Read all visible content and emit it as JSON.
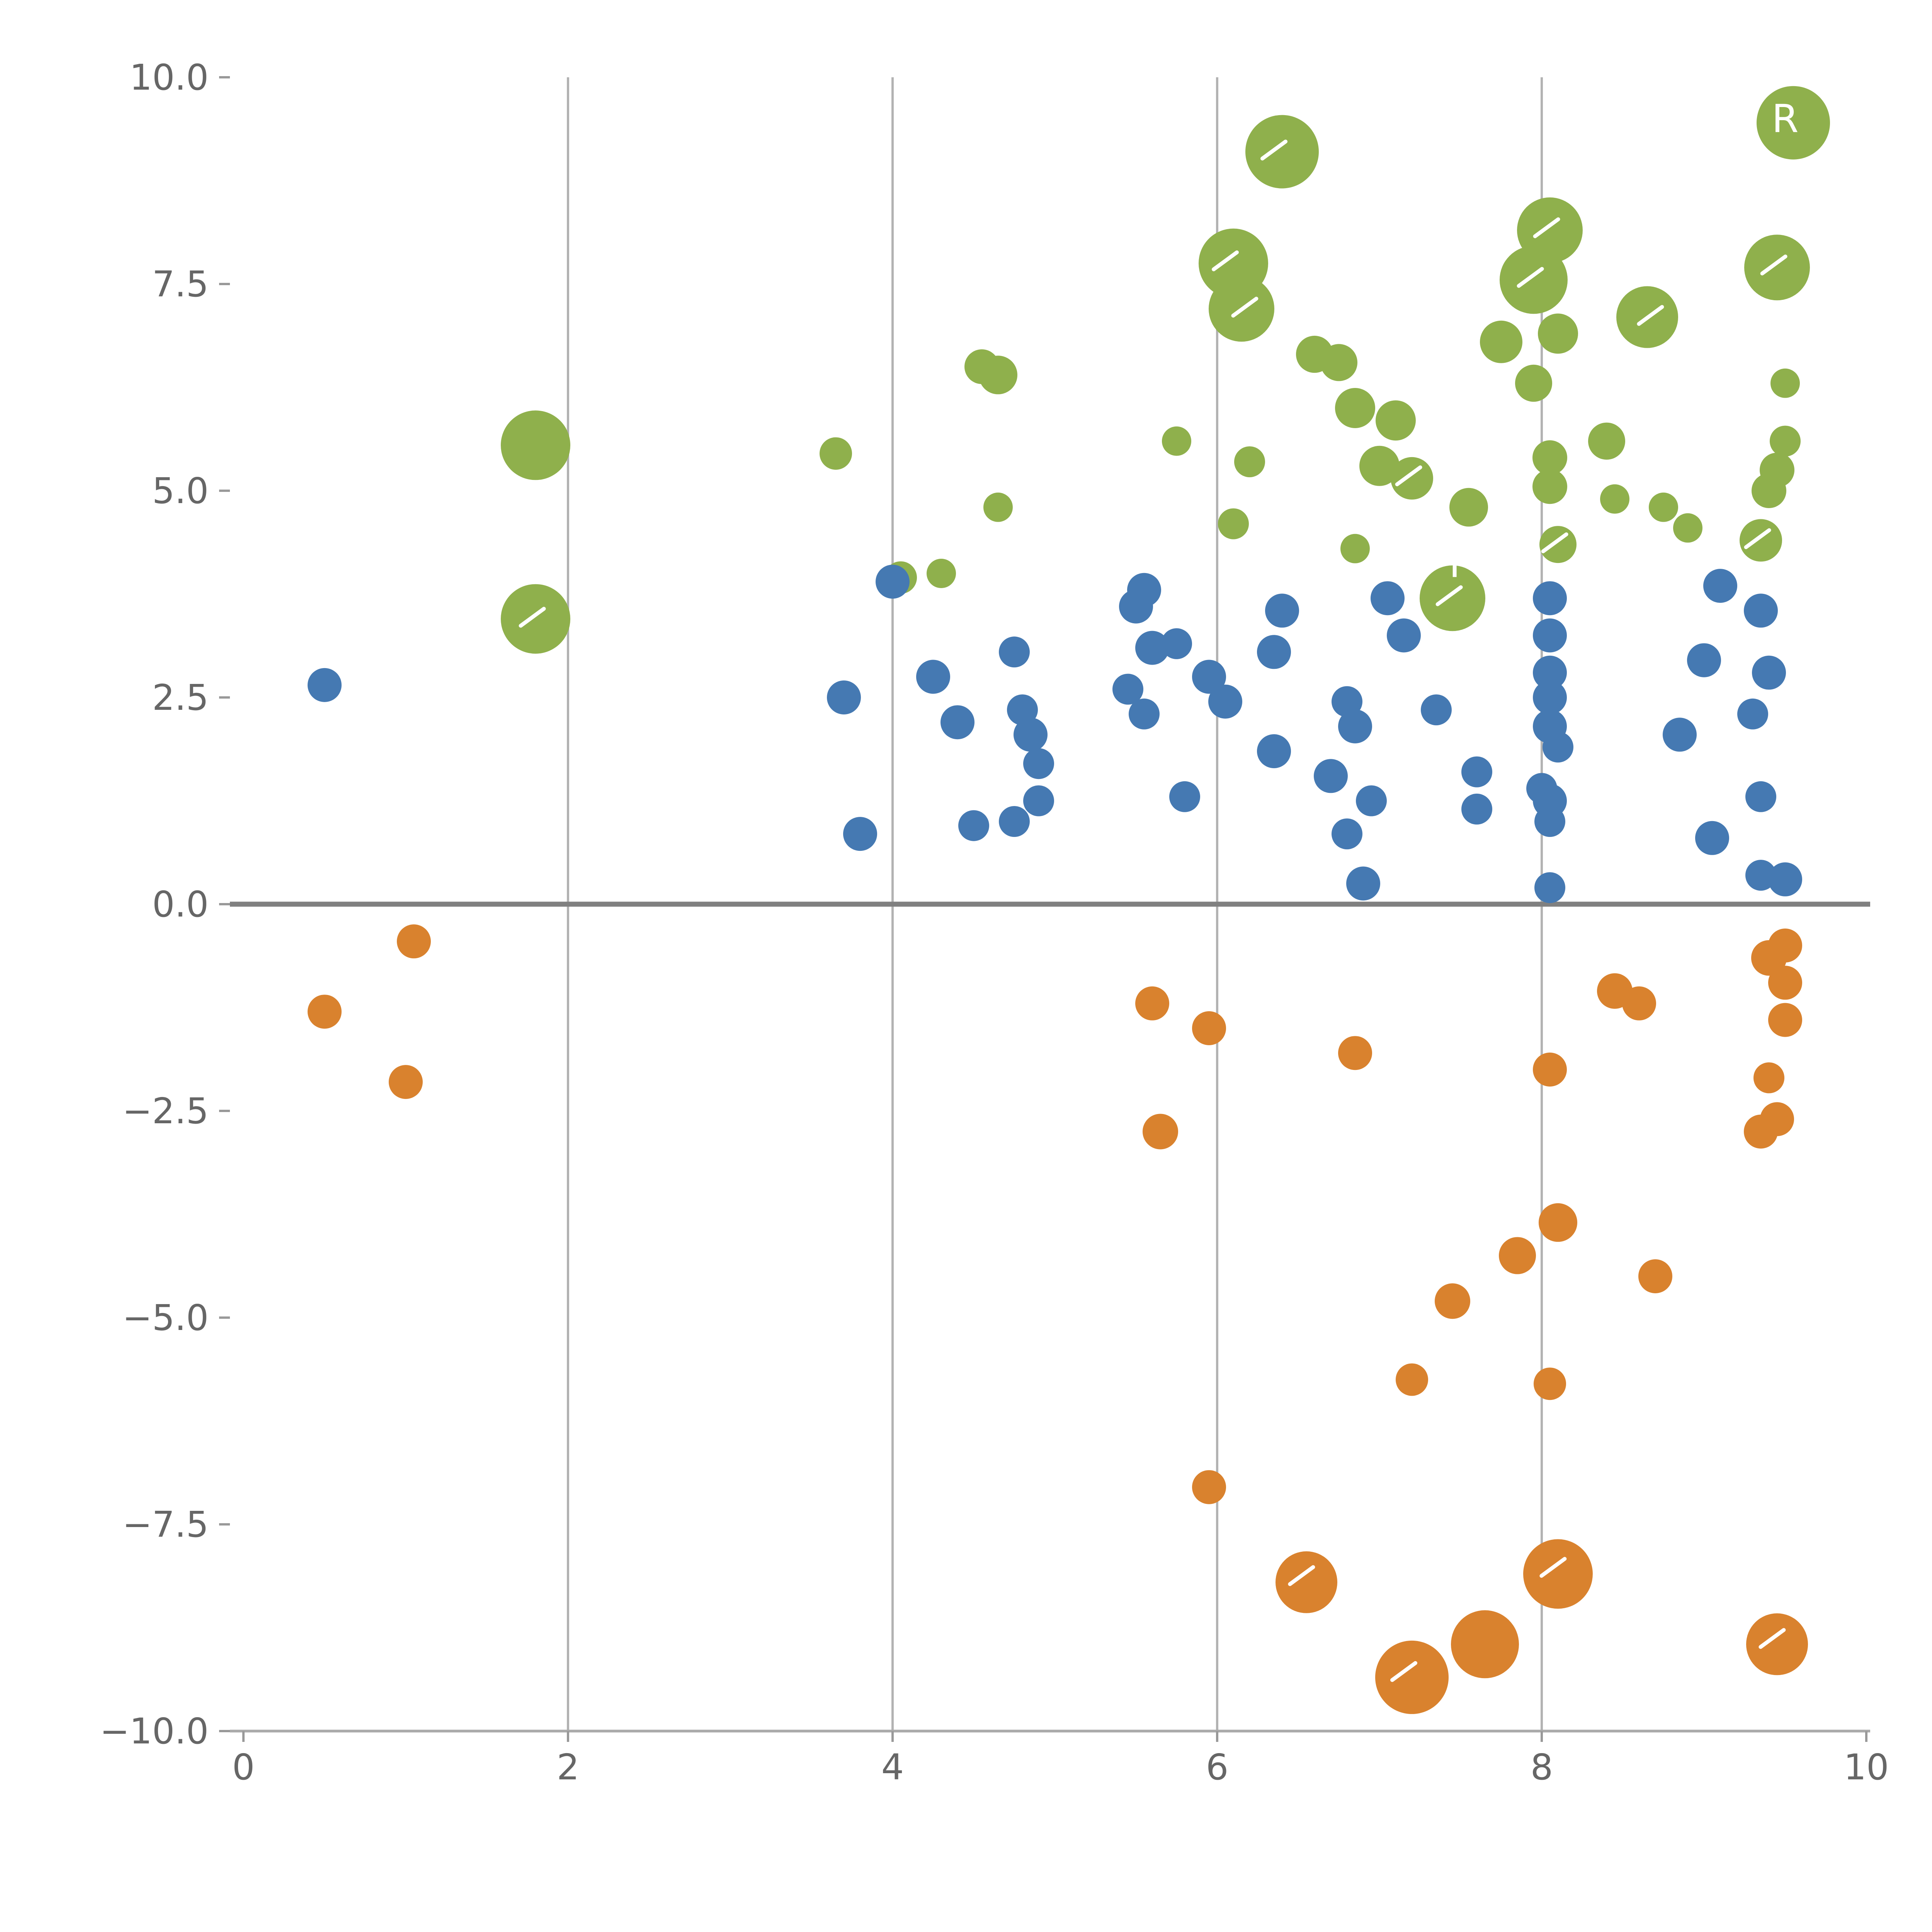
{
  "chart_data": {
    "type": "scatter",
    "title": "",
    "xlabel": "",
    "ylabel": "",
    "xlim": [
      0,
      10
    ],
    "ylim": [
      -10,
      10
    ],
    "xticks": [
      0,
      2,
      4,
      6,
      8,
      10
    ],
    "xtick_labels": [
      "0",
      "2",
      "4",
      "6",
      "8",
      "10"
    ],
    "yticks": [
      -10.0,
      -7.5,
      -5.0,
      -2.5,
      0.0,
      2.5,
      5.0,
      7.5,
      10.0
    ],
    "ytick_labels": [
      "−10.0",
      "−7.5",
      "−5.0",
      "−2.5",
      "0.0",
      "2.5",
      "5.0",
      "7.5",
      "10.0"
    ],
    "grid": {
      "vertical_lines_at": [
        2,
        4,
        6,
        8
      ],
      "color": "#b3b3b3"
    },
    "axis_line_color": "#aaaaaa",
    "tick_mark_color": "#999999",
    "tick_label_color": "#666666",
    "zero_line": {
      "y": 0.0,
      "color": "#808080"
    },
    "legend": "none",
    "point_schema": [
      "x",
      "y",
      "radius_px"
    ],
    "series": [
      {
        "name": "green",
        "color": "#8fb04c",
        "points": [
          [
            6.4,
            9.1,
            95
          ],
          [
            9.55,
            9.45,
            95
          ],
          [
            6.1,
            7.75,
            90
          ],
          [
            6.15,
            7.2,
            85
          ],
          [
            8.05,
            8.15,
            85
          ],
          [
            7.95,
            7.55,
            88
          ],
          [
            9.45,
            7.7,
            85
          ],
          [
            8.65,
            7.1,
            80
          ],
          [
            7.75,
            6.8,
            55
          ],
          [
            8.1,
            6.9,
            52
          ],
          [
            6.6,
            6.65,
            48
          ],
          [
            6.75,
            6.55,
            48
          ],
          [
            4.55,
            6.5,
            45
          ],
          [
            4.65,
            6.4,
            50
          ],
          [
            6.85,
            6.0,
            52
          ],
          [
            7.1,
            5.85,
            52
          ],
          [
            7.95,
            6.3,
            48
          ],
          [
            9.5,
            6.3,
            38
          ],
          [
            1.8,
            5.55,
            90
          ],
          [
            3.65,
            5.45,
            42
          ],
          [
            5.75,
            5.6,
            38
          ],
          [
            8.4,
            5.6,
            48
          ],
          [
            6.2,
            5.35,
            40
          ],
          [
            7.0,
            5.3,
            52
          ],
          [
            7.2,
            5.15,
            55
          ],
          [
            8.05,
            5.4,
            45
          ],
          [
            8.05,
            5.05,
            45
          ],
          [
            7.55,
            4.8,
            50
          ],
          [
            9.5,
            5.6,
            40
          ],
          [
            9.45,
            5.25,
            45
          ],
          [
            9.4,
            5.0,
            45
          ],
          [
            4.65,
            4.8,
            38
          ],
          [
            6.1,
            4.6,
            40
          ],
          [
            6.85,
            4.3,
            38
          ],
          [
            8.45,
            4.9,
            38
          ],
          [
            8.75,
            4.8,
            38
          ],
          [
            8.9,
            4.55,
            38
          ],
          [
            7.45,
            3.7,
            85
          ],
          [
            1.8,
            3.45,
            90
          ],
          [
            4.05,
            3.95,
            42
          ],
          [
            4.3,
            4.0,
            38
          ],
          [
            9.35,
            4.4,
            55
          ],
          [
            8.1,
            4.35,
            48
          ]
        ]
      },
      {
        "name": "blue",
        "color": "#4579b2",
        "points": [
          [
            0.5,
            2.65,
            44
          ],
          [
            4.0,
            3.9,
            44
          ],
          [
            5.55,
            3.8,
            44
          ],
          [
            5.5,
            3.6,
            44
          ],
          [
            6.4,
            3.55,
            44
          ],
          [
            7.05,
            3.7,
            44
          ],
          [
            8.05,
            3.7,
            44
          ],
          [
            9.1,
            3.85,
            44
          ],
          [
            9.35,
            3.55,
            44
          ],
          [
            5.6,
            3.1,
            44
          ],
          [
            5.75,
            3.15,
            40
          ],
          [
            6.35,
            3.05,
            44
          ],
          [
            7.15,
            3.25,
            44
          ],
          [
            4.75,
            3.05,
            40
          ],
          [
            8.05,
            3.25,
            44
          ],
          [
            8.05,
            2.8,
            44
          ],
          [
            8.05,
            2.5,
            44
          ],
          [
            8.05,
            2.15,
            44
          ],
          [
            8.1,
            1.9,
            40
          ],
          [
            9.0,
            2.95,
            44
          ],
          [
            9.4,
            2.8,
            44
          ],
          [
            4.25,
            2.75,
            44
          ],
          [
            3.7,
            2.5,
            44
          ],
          [
            5.45,
            2.6,
            40
          ],
          [
            5.95,
            2.75,
            44
          ],
          [
            6.05,
            2.45,
            44
          ],
          [
            6.8,
            2.45,
            40
          ],
          [
            4.4,
            2.2,
            44
          ],
          [
            4.8,
            2.35,
            40
          ],
          [
            4.85,
            2.05,
            44
          ],
          [
            5.55,
            2.3,
            40
          ],
          [
            6.85,
            2.15,
            44
          ],
          [
            7.35,
            2.35,
            40
          ],
          [
            8.85,
            2.05,
            44
          ],
          [
            9.3,
            2.3,
            40
          ],
          [
            6.35,
            1.85,
            44
          ],
          [
            4.9,
            1.7,
            40
          ],
          [
            6.7,
            1.55,
            44
          ],
          [
            7.6,
            1.6,
            40
          ],
          [
            8.0,
            1.4,
            40
          ],
          [
            5.8,
            1.3,
            40
          ],
          [
            4.9,
            1.25,
            40
          ],
          [
            4.75,
            1.0,
            40
          ],
          [
            4.5,
            0.95,
            40
          ],
          [
            6.95,
            1.25,
            40
          ],
          [
            7.6,
            1.15,
            40
          ],
          [
            8.05,
            1.25,
            44
          ],
          [
            8.05,
            1.0,
            40
          ],
          [
            9.35,
            1.3,
            40
          ],
          [
            3.8,
            0.85,
            44
          ],
          [
            6.8,
            0.85,
            40
          ],
          [
            9.05,
            0.8,
            44
          ],
          [
            6.9,
            0.25,
            44
          ],
          [
            8.05,
            0.2,
            40
          ],
          [
            9.35,
            0.35,
            40
          ],
          [
            9.5,
            0.3,
            44
          ]
        ]
      },
      {
        "name": "orange",
        "color": "#d9822e",
        "points": [
          [
            1.05,
            -0.45,
            44
          ],
          [
            0.5,
            -1.3,
            44
          ],
          [
            1.0,
            -2.15,
            44
          ],
          [
            5.6,
            -1.2,
            44
          ],
          [
            5.95,
            -1.5,
            44
          ],
          [
            6.85,
            -1.8,
            44
          ],
          [
            5.65,
            -2.75,
            46
          ],
          [
            8.45,
            -1.05,
            46
          ],
          [
            8.6,
            -1.2,
            44
          ],
          [
            9.4,
            -0.65,
            46
          ],
          [
            9.5,
            -0.5,
            44
          ],
          [
            9.5,
            -0.95,
            44
          ],
          [
            9.5,
            -1.4,
            44
          ],
          [
            8.05,
            -2.0,
            44
          ],
          [
            9.4,
            -2.1,
            40
          ],
          [
            9.45,
            -2.6,
            44
          ],
          [
            9.35,
            -2.75,
            44
          ],
          [
            8.1,
            -3.85,
            50
          ],
          [
            7.85,
            -4.25,
            48
          ],
          [
            8.7,
            -4.5,
            44
          ],
          [
            7.45,
            -4.8,
            46
          ],
          [
            7.2,
            -5.75,
            42
          ],
          [
            8.05,
            -5.8,
            42
          ],
          [
            5.95,
            -7.05,
            44
          ],
          [
            6.55,
            -8.2,
            80
          ],
          [
            8.1,
            -8.1,
            90
          ],
          [
            7.2,
            -9.35,
            95
          ],
          [
            7.65,
            -8.95,
            88
          ],
          [
            9.45,
            -8.95,
            80
          ]
        ]
      }
    ],
    "point_annotations": [
      {
        "text": "R",
        "x": 9.5,
        "y": 9.5
      },
      {
        "text": "P",
        "x": 7.5,
        "y": 4.12
      }
    ],
    "white_tick_marks": [
      [
        6.35,
        9.12
      ],
      [
        6.05,
        7.78
      ],
      [
        6.17,
        7.22
      ],
      [
        7.93,
        7.58
      ],
      [
        8.03,
        8.18
      ],
      [
        9.43,
        7.73
      ],
      [
        8.67,
        7.12
      ],
      [
        7.18,
        5.18
      ],
      [
        7.43,
        3.73
      ],
      [
        9.33,
        4.42
      ],
      [
        8.08,
        4.37
      ],
      [
        1.78,
        3.47
      ],
      [
        6.52,
        -8.12
      ],
      [
        7.15,
        -9.28
      ],
      [
        8.07,
        -8.02
      ],
      [
        9.42,
        -8.88
      ]
    ]
  }
}
